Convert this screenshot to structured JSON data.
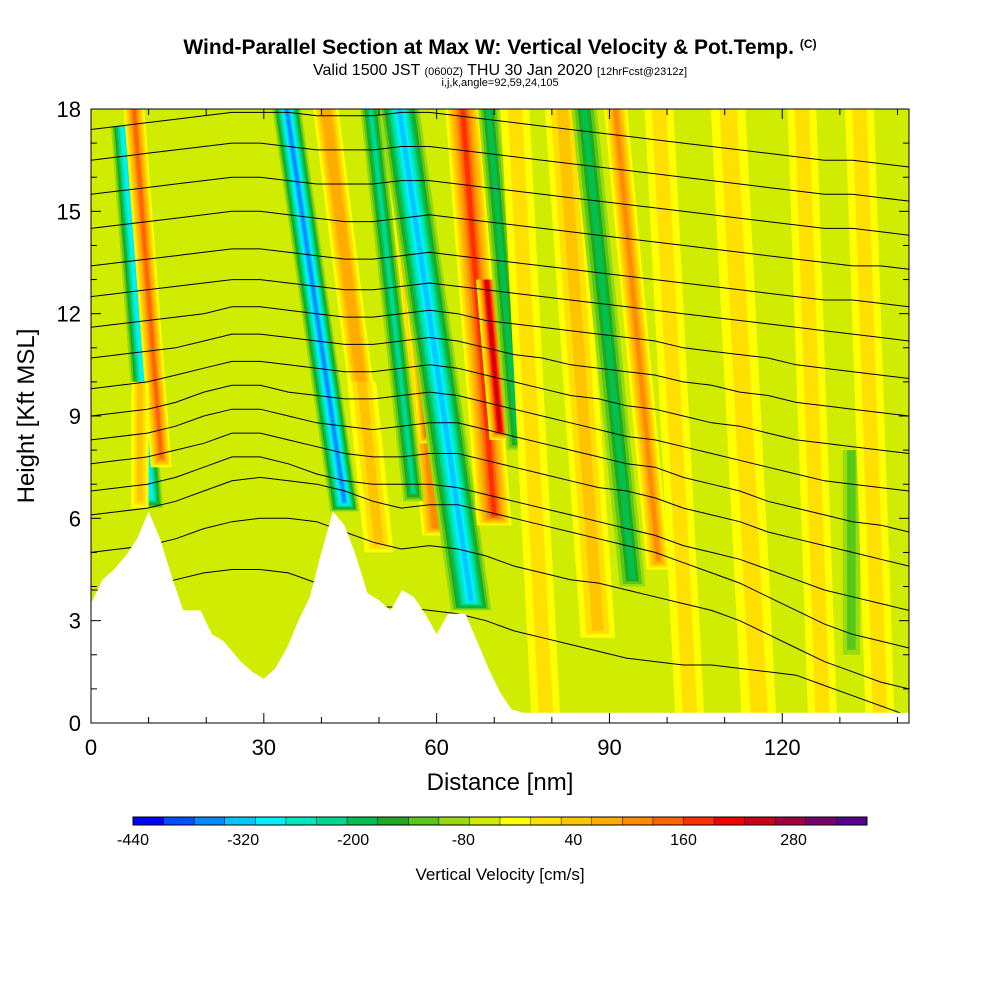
{
  "chart_data": {
    "type": "heatmap",
    "title": "Wind-Parallel Section at Max W: Vertical Velocity & Pot.Temp.",
    "title_mark": "(C)",
    "subtitle_prefix": "Valid 1500 JST",
    "subtitle_utc": "(0600Z)",
    "subtitle_date": "THU 30 Jan 2020",
    "subtitle_fcst": "[12hrFcst@2312z]",
    "params": "i,j,k,angle=92,59,24,105",
    "xlabel": "Distance [nm]",
    "ylabel": "Height [Kft MSL]",
    "xlim": [
      0,
      142
    ],
    "ylim": [
      0,
      18
    ],
    "x_ticks": [
      0,
      30,
      60,
      90,
      120
    ],
    "y_ticks": [
      0,
      3,
      6,
      9,
      12,
      15,
      18
    ],
    "colorbar": {
      "label": "Vertical Velocity [cm/s]",
      "min": -440,
      "max": 360,
      "step": 40,
      "tick_values": [
        -440,
        -320,
        -200,
        -80,
        40,
        160,
        280
      ],
      "colors": [
        "#0000ff",
        "#0050ff",
        "#008cff",
        "#00c8ff",
        "#00f0ff",
        "#00e8c0",
        "#00d890",
        "#00c050",
        "#20a820",
        "#58c818",
        "#98dc10",
        "#d0ec00",
        "#ffff00",
        "#ffe000",
        "#ffc400",
        "#ffac00",
        "#ff8c00",
        "#ff6400",
        "#ff3000",
        "#f40000",
        "#cc0018",
        "#a00040",
        "#78006c",
        "#580090"
      ]
    },
    "vertical_velocity_features": [
      {
        "x": 10.5,
        "y_top": 17.5,
        "y_bottom": 6.3,
        "tilt_per_kft": -0.45,
        "width": 2.0,
        "value": -280
      },
      {
        "x": 12.2,
        "y_top": 18,
        "y_bottom": 7.5,
        "tilt_per_kft": -0.45,
        "width": 1.8,
        "value": 240
      },
      {
        "x": 8.5,
        "y_top": 10,
        "y_bottom": 6.3,
        "tilt_per_kft": 0,
        "width": 1.5,
        "value": 120
      },
      {
        "x": 44,
        "y_top": 18,
        "y_bottom": 6.2,
        "tilt_per_kft": -0.85,
        "width": 2.5,
        "value": -340
      },
      {
        "x": 47.5,
        "y_top": 18,
        "y_bottom": 9,
        "tilt_per_kft": -0.75,
        "width": 2.2,
        "value": 180
      },
      {
        "x": 50,
        "y_top": 10,
        "y_bottom": 5,
        "tilt_per_kft": -0.6,
        "width": 2.5,
        "value": 120
      },
      {
        "x": 60,
        "y_top": 18,
        "y_bottom": 5.5,
        "tilt_per_kft": -0.55,
        "width": 2.5,
        "value": 230
      },
      {
        "x": 58.5,
        "y_top": 13,
        "y_bottom": 8.2,
        "tilt_per_kft": -0.55,
        "width": 1.5,
        "value": 300
      },
      {
        "x": 56,
        "y_top": 18,
        "y_bottom": 6.5,
        "tilt_per_kft": -0.65,
        "width": 1.8,
        "value": -200
      },
      {
        "x": 66,
        "y_top": 18,
        "y_bottom": 3.3,
        "tilt_per_kft": -0.85,
        "width": 3.5,
        "value": -320
      },
      {
        "x": 70,
        "y_top": 18,
        "y_bottom": 5.8,
        "tilt_per_kft": -0.45,
        "width": 3.0,
        "value": 280
      },
      {
        "x": 71,
        "y_top": 13,
        "y_bottom": 8.3,
        "tilt_per_kft": -0.5,
        "width": 1.8,
        "value": 360
      },
      {
        "x": 74,
        "y_top": 18,
        "y_bottom": 8,
        "tilt_per_kft": -0.5,
        "width": 1.8,
        "value": -150
      },
      {
        "x": 79,
        "y_top": 18,
        "y_bottom": 0,
        "tilt_per_kft": -0.3,
        "width": 2.5,
        "value": 80
      },
      {
        "x": 88,
        "y_top": 18,
        "y_bottom": 2.5,
        "tilt_per_kft": -0.4,
        "width": 3.0,
        "value": 120
      },
      {
        "x": 94,
        "y_top": 18,
        "y_bottom": 4,
        "tilt_per_kft": -0.6,
        "width": 2.2,
        "value": -150
      },
      {
        "x": 98.5,
        "y_top": 18,
        "y_bottom": 4.5,
        "tilt_per_kft": -0.55,
        "width": 2.0,
        "value": 200
      },
      {
        "x": 104,
        "y_top": 18,
        "y_bottom": 0,
        "tilt_per_kft": -0.3,
        "width": 2.5,
        "value": 80
      },
      {
        "x": 116,
        "y_top": 18,
        "y_bottom": 0,
        "tilt_per_kft": -0.3,
        "width": 3.0,
        "value": 80
      },
      {
        "x": 127,
        "y_top": 18,
        "y_bottom": 0,
        "tilt_per_kft": -0.2,
        "width": 2.5,
        "value": 80
      },
      {
        "x": 132,
        "y_top": 8,
        "y_bottom": 2,
        "tilt_per_kft": 0,
        "width": 1.5,
        "value": -90
      },
      {
        "x": 137,
        "y_top": 18,
        "y_bottom": 0,
        "tilt_per_kft": -0.2,
        "width": 2.5,
        "value": 80
      }
    ],
    "potential_temperature_isentropes": [
      {
        "base_y": 2.0,
        "y": [
          3.9,
          3.9,
          4.0,
          4.2,
          4.4,
          4.5,
          4.5,
          4.4,
          4.1,
          3.7,
          3.4,
          3.4,
          3.3,
          3.2,
          3.0,
          2.7,
          2.5,
          2.3,
          2.1,
          1.9,
          1.8,
          1.7,
          1.7,
          1.6,
          1.5,
          1.4,
          1.1,
          0.8,
          0.5,
          0.2
        ]
      },
      {
        "base_y": 3.2,
        "y": [
          5.0,
          5.1,
          5.2,
          5.4,
          5.7,
          5.9,
          6.0,
          6.0,
          5.9,
          5.6,
          5.3,
          5.1,
          5.2,
          5.1,
          4.9,
          4.6,
          4.4,
          4.2,
          4.1,
          3.9,
          3.7,
          3.5,
          3.3,
          3.0,
          2.6,
          2.2,
          1.8,
          1.5,
          1.2,
          1.0
        ]
      },
      {
        "base_y": 4.6,
        "y": [
          6.1,
          6.2,
          6.3,
          6.5,
          6.8,
          7.1,
          7.2,
          7.1,
          7.0,
          6.8,
          6.5,
          6.3,
          6.4,
          6.4,
          6.2,
          6.0,
          5.8,
          5.6,
          5.4,
          5.2,
          5.0,
          4.7,
          4.4,
          4.1,
          3.7,
          3.3,
          2.9,
          2.6,
          2.4,
          2.2
        ]
      },
      {
        "base_y": 5.6,
        "y": [
          6.8,
          6.9,
          7.0,
          7.2,
          7.5,
          7.8,
          7.8,
          7.6,
          7.3,
          7.1,
          7.0,
          7.0,
          7.0,
          6.9,
          6.7,
          6.5,
          6.3,
          6.1,
          5.9,
          5.7,
          5.5,
          5.2,
          5.0,
          4.8,
          4.5,
          4.2,
          3.9,
          3.7,
          3.5,
          3.3
        ]
      },
      {
        "base_y": 6.8,
        "y": [
          7.6,
          7.7,
          7.8,
          8.0,
          8.2,
          8.5,
          8.5,
          8.3,
          8.1,
          7.9,
          7.8,
          7.8,
          7.9,
          7.9,
          7.7,
          7.5,
          7.3,
          7.1,
          6.9,
          6.8,
          6.6,
          6.3,
          6.1,
          5.9,
          5.6,
          5.4,
          5.2,
          5.0,
          4.8,
          4.6
        ]
      },
      {
        "base_y": 7.8,
        "y": [
          8.3,
          8.4,
          8.5,
          8.7,
          9.0,
          9.2,
          9.2,
          9.0,
          8.8,
          8.7,
          8.6,
          8.7,
          8.8,
          8.8,
          8.6,
          8.4,
          8.2,
          8.0,
          7.8,
          7.6,
          7.5,
          7.2,
          7.0,
          6.8,
          6.5,
          6.3,
          6.1,
          5.9,
          5.8,
          5.6
        ]
      },
      {
        "base_y": 8.6,
        "y": [
          9.0,
          9.1,
          9.2,
          9.4,
          9.7,
          9.9,
          9.9,
          9.7,
          9.6,
          9.5,
          9.5,
          9.6,
          9.7,
          9.6,
          9.4,
          9.2,
          9.0,
          8.8,
          8.6,
          8.4,
          8.3,
          8.1,
          7.9,
          7.7,
          7.5,
          7.3,
          7.1,
          7.0,
          6.9,
          6.8
        ]
      },
      {
        "base_y": 9.4,
        "y": [
          9.8,
          9.9,
          10.0,
          10.2,
          10.4,
          10.6,
          10.6,
          10.5,
          10.4,
          10.3,
          10.3,
          10.4,
          10.5,
          10.4,
          10.2,
          10.0,
          9.8,
          9.6,
          9.5,
          9.3,
          9.2,
          9.0,
          8.8,
          8.7,
          8.5,
          8.3,
          8.2,
          8.1,
          8.0,
          7.9
        ]
      },
      {
        "base_y": 10.2,
        "y": [
          10.7,
          10.8,
          10.9,
          11.0,
          11.2,
          11.4,
          11.4,
          11.3,
          11.2,
          11.1,
          11.1,
          11.2,
          11.3,
          11.2,
          11.0,
          10.8,
          10.7,
          10.5,
          10.4,
          10.3,
          10.2,
          10.0,
          9.9,
          9.7,
          9.6,
          9.4,
          9.3,
          9.2,
          9.1,
          9.0
        ]
      },
      {
        "base_y": 11.0,
        "y": [
          11.6,
          11.7,
          11.8,
          11.9,
          12.0,
          12.2,
          12.2,
          12.1,
          12.0,
          11.9,
          11.9,
          12.0,
          12.1,
          12.0,
          11.8,
          11.7,
          11.6,
          11.5,
          11.4,
          11.3,
          11.2,
          11.0,
          10.9,
          10.8,
          10.7,
          10.5,
          10.4,
          10.3,
          10.2,
          10.1
        ]
      },
      {
        "base_y": 11.8,
        "y": [
          12.5,
          12.6,
          12.7,
          12.8,
          12.9,
          13.0,
          13.0,
          12.9,
          12.8,
          12.7,
          12.7,
          12.8,
          12.9,
          12.8,
          12.7,
          12.6,
          12.5,
          12.4,
          12.3,
          12.2,
          12.1,
          12.0,
          11.9,
          11.8,
          11.7,
          11.6,
          11.5,
          11.4,
          11.3,
          11.2
        ]
      },
      {
        "base_y": 12.6,
        "y": [
          13.4,
          13.5,
          13.6,
          13.7,
          13.8,
          13.9,
          13.9,
          13.8,
          13.7,
          13.6,
          13.6,
          13.7,
          13.8,
          13.7,
          13.6,
          13.5,
          13.4,
          13.3,
          13.2,
          13.1,
          13.0,
          12.9,
          12.8,
          12.7,
          12.6,
          12.5,
          12.4,
          12.4,
          12.3,
          12.2
        ]
      },
      {
        "base_y": 13.6,
        "y": [
          14.5,
          14.6,
          14.7,
          14.8,
          14.9,
          15.0,
          15.0,
          14.9,
          14.8,
          14.7,
          14.7,
          14.8,
          14.9,
          14.8,
          14.7,
          14.6,
          14.5,
          14.4,
          14.3,
          14.2,
          14.1,
          14.0,
          13.9,
          13.8,
          13.7,
          13.6,
          13.5,
          13.4,
          13.4,
          13.3
        ]
      },
      {
        "base_y": 14.6,
        "y": [
          15.5,
          15.6,
          15.7,
          15.8,
          15.9,
          16.0,
          16.0,
          15.9,
          15.8,
          15.8,
          15.8,
          15.9,
          15.9,
          15.8,
          15.7,
          15.6,
          15.5,
          15.4,
          15.3,
          15.2,
          15.1,
          15.0,
          14.9,
          14.8,
          14.7,
          14.6,
          14.5,
          14.5,
          14.4,
          14.3
        ]
      },
      {
        "base_y": 15.6,
        "y": [
          16.5,
          16.6,
          16.7,
          16.8,
          16.9,
          17.0,
          17.0,
          16.9,
          16.8,
          16.8,
          16.8,
          16.9,
          16.9,
          16.8,
          16.7,
          16.6,
          16.5,
          16.4,
          16.3,
          16.2,
          16.1,
          16.0,
          15.9,
          15.8,
          15.7,
          15.6,
          15.5,
          15.5,
          15.4,
          15.3
        ]
      },
      {
        "base_y": 16.6,
        "y": [
          17.4,
          17.5,
          17.6,
          17.7,
          17.8,
          17.9,
          17.9,
          17.9,
          17.8,
          17.8,
          17.8,
          17.9,
          17.9,
          17.8,
          17.7,
          17.6,
          17.5,
          17.4,
          17.3,
          17.2,
          17.1,
          17.0,
          16.9,
          16.8,
          16.7,
          16.6,
          16.5,
          16.5,
          16.4,
          16.3
        ]
      }
    ],
    "terrain_height_kft": [
      [
        0,
        3.5
      ],
      [
        2,
        4.2
      ],
      [
        4,
        4.5
      ],
      [
        6,
        4.9
      ],
      [
        8,
        5.4
      ],
      [
        10,
        6.2
      ],
      [
        12,
        5.4
      ],
      [
        14,
        4.3
      ],
      [
        16,
        3.3
      ],
      [
        19,
        3.3
      ],
      [
        21,
        2.6
      ],
      [
        23,
        2.4
      ],
      [
        26,
        1.8
      ],
      [
        28,
        1.5
      ],
      [
        30,
        1.3
      ],
      [
        32,
        1.6
      ],
      [
        34,
        2.2
      ],
      [
        36,
        3.0
      ],
      [
        38,
        3.7
      ],
      [
        40,
        5.0
      ],
      [
        42,
        6.2
      ],
      [
        44,
        5.8
      ],
      [
        46,
        4.9
      ],
      [
        48,
        3.8
      ],
      [
        50,
        3.6
      ],
      [
        52,
        3.3
      ],
      [
        54,
        3.9
      ],
      [
        56,
        3.7
      ],
      [
        58,
        3.2
      ],
      [
        60,
        2.6
      ],
      [
        62,
        3.2
      ],
      [
        65,
        3.2
      ],
      [
        67,
        2.4
      ],
      [
        69,
        1.6
      ],
      [
        71,
        0.9
      ],
      [
        73,
        0.4
      ],
      [
        75,
        0.3
      ],
      [
        142,
        0.3
      ]
    ]
  }
}
